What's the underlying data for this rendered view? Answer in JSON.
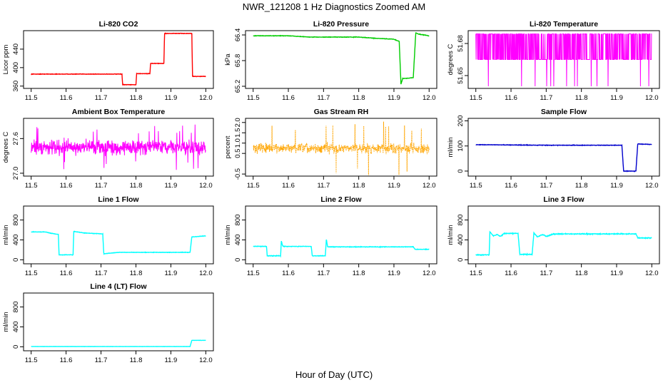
{
  "figure": {
    "title": "NWR_121208  1 Hz Diagnostics Zoomed AM",
    "xlabel": "Hour of Day (UTC)"
  },
  "chart_data": [
    {
      "type": "line",
      "title": "Li-820 CO2",
      "ylabel": "Licor ppm",
      "color": "#ff0000",
      "xlim": [
        11.5,
        12.0
      ],
      "ylim": [
        355,
        480
      ],
      "xticks": [
        "11.5",
        "11.6",
        "11.7",
        "11.8",
        "11.9",
        "12.0"
      ],
      "yticks": [
        "360",
        "400",
        "440"
      ],
      "noise": 0.7,
      "series": [
        {
          "x": [
            11.5,
            11.76,
            11.762,
            11.8,
            11.802,
            11.84,
            11.842,
            11.88,
            11.882,
            11.96,
            11.962,
            12.0
          ],
          "y": [
            386,
            386,
            363,
            363,
            387,
            387,
            409,
            409,
            474,
            474,
            381,
            381
          ]
        }
      ]
    },
    {
      "type": "line",
      "title": "Li-820 Pressure",
      "ylabel": "kPa",
      "color": "#00cc00",
      "xlim": [
        11.5,
        12.0
      ],
      "ylim": [
        65.15,
        66.5
      ],
      "xticks": [
        "11.5",
        "11.6",
        "11.7",
        "11.8",
        "11.9",
        "12.0"
      ],
      "yticks": [
        "65.2",
        "65.8",
        "66.4"
      ],
      "noise": 0.008,
      "series": [
        {
          "x": [
            11.5,
            11.6,
            11.66,
            11.7,
            11.8,
            11.85,
            11.9,
            11.915,
            11.92,
            11.925,
            11.955,
            11.962,
            11.97,
            12.0
          ],
          "y": [
            66.38,
            66.38,
            66.35,
            66.35,
            66.35,
            66.32,
            66.3,
            66.25,
            65.25,
            65.38,
            65.4,
            66.45,
            66.42,
            66.38
          ]
        }
      ]
    },
    {
      "type": "line",
      "title": "Li-820 Temperature",
      "ylabel": "degrees C",
      "color": "#ff00ff",
      "xlim": [
        11.5,
        12.0
      ],
      "ylim": [
        51.638,
        51.692
      ],
      "xticks": [
        "11.5",
        "11.6",
        "11.7",
        "11.8",
        "11.9",
        "12.0"
      ],
      "yticks": [
        "51.65",
        "51.68"
      ],
      "pattern": "binary",
      "levels": [
        51.665,
        51.689
      ],
      "low": 51.64,
      "series": [
        {
          "x": [
            11.5,
            12.0
          ],
          "y": [
            51.665,
            51.689
          ]
        }
      ]
    },
    {
      "type": "line",
      "title": "Ambient Box Temperature",
      "ylabel": "degrees C",
      "color": "#ff00ff",
      "xlim": [
        11.5,
        12.0
      ],
      "ylim": [
        26.95,
        27.95
      ],
      "xticks": [
        "11.5",
        "11.6",
        "11.7",
        "11.8",
        "11.9",
        "12.0"
      ],
      "yticks": [
        "27.0",
        "27.6"
      ],
      "pattern": "band",
      "center": 27.45,
      "spread": 0.18,
      "spikes": 0.4,
      "series": [
        {
          "x": [
            11.5,
            12.0
          ],
          "y": [
            27.45,
            27.45
          ]
        }
      ]
    },
    {
      "type": "scatter",
      "title": "Gas Stream RH",
      "ylabel": "percent",
      "color": "#ffa500",
      "xlim": [
        11.5,
        12.0
      ],
      "ylim": [
        -0.6,
        2.2
      ],
      "xticks": [
        "11.5",
        "11.6",
        "11.7",
        "11.8",
        "11.9",
        "12.0"
      ],
      "yticks": [
        "-0.5",
        "0.5",
        "1.0",
        "1.5",
        "2.0"
      ],
      "pattern": "band",
      "center": 0.75,
      "spread": 0.35,
      "spikes": 1.3,
      "series": [
        {
          "x": [
            11.5,
            12.0
          ],
          "y": [
            0.75,
            0.75
          ]
        }
      ]
    },
    {
      "type": "line",
      "title": "Sample Flow",
      "ylabel": "ml/min",
      "color": "#0000cc",
      "xlim": [
        11.5,
        12.0
      ],
      "ylim": [
        -20,
        210
      ],
      "xticks": [
        "11.5",
        "11.6",
        "11.7",
        "11.8",
        "11.9",
        "12.0"
      ],
      "yticks": [
        "0",
        "100",
        "200"
      ],
      "noise": 1.5,
      "series": [
        {
          "x": [
            11.5,
            11.7,
            11.915,
            11.92,
            11.955,
            11.96,
            12.0
          ],
          "y": [
            105,
            103,
            103,
            0,
            0,
            108,
            106
          ]
        }
      ]
    },
    {
      "type": "line",
      "title": "Line 1 Flow",
      "ylabel": "ml/min",
      "color": "#00ffff",
      "xlim": [
        11.5,
        12.0
      ],
      "ylim": [
        -80,
        1080
      ],
      "xticks": [
        "11.5",
        "11.6",
        "11.7",
        "11.8",
        "11.9",
        "12.0"
      ],
      "yticks": [
        "0",
        "400",
        "800"
      ],
      "noise": 6,
      "series": [
        {
          "x": [
            11.5,
            11.54,
            11.56,
            11.578,
            11.58,
            11.62,
            11.622,
            11.65,
            11.705,
            11.708,
            11.75,
            11.955,
            11.96,
            12.0
          ],
          "y": [
            560,
            560,
            530,
            510,
            100,
            100,
            570,
            540,
            520,
            120,
            150,
            150,
            460,
            480
          ]
        }
      ]
    },
    {
      "type": "line",
      "title": "Line 2 Flow",
      "ylabel": "ml/min",
      "color": "#00ffff",
      "xlim": [
        11.5,
        12.0
      ],
      "ylim": [
        -80,
        1080
      ],
      "xticks": [
        "11.5",
        "11.6",
        "11.7",
        "11.8",
        "11.9",
        "12.0"
      ],
      "yticks": [
        "0",
        "400",
        "800"
      ],
      "noise": 8,
      "series": [
        {
          "x": [
            11.5,
            11.538,
            11.54,
            11.578,
            11.58,
            11.583,
            11.585,
            11.665,
            11.668,
            11.705,
            11.708,
            11.71,
            11.712,
            11.955,
            11.96,
            12.0
          ],
          "y": [
            270,
            270,
            80,
            80,
            380,
            300,
            270,
            270,
            80,
            80,
            420,
            320,
            260,
            260,
            210,
            210
          ]
        }
      ]
    },
    {
      "type": "line",
      "title": "Line 3 Flow",
      "ylabel": "ml/min",
      "color": "#00ffff",
      "xlim": [
        11.5,
        12.0
      ],
      "ylim": [
        -80,
        1080
      ],
      "xticks": [
        "11.5",
        "11.6",
        "11.7",
        "11.8",
        "11.9",
        "12.0"
      ],
      "yticks": [
        "0",
        "400",
        "800"
      ],
      "noise": 12,
      "series": [
        {
          "x": [
            11.5,
            11.538,
            11.54,
            11.55,
            11.56,
            11.57,
            11.58,
            11.62,
            11.625,
            11.66,
            11.665,
            11.675,
            11.69,
            11.7,
            11.72,
            11.955,
            11.96,
            12.0
          ],
          "y": [
            100,
            100,
            560,
            480,
            510,
            470,
            530,
            530,
            110,
            110,
            540,
            460,
            510,
            470,
            520,
            520,
            440,
            440
          ]
        }
      ]
    },
    {
      "type": "line",
      "title": "Line 4 (LT) Flow",
      "ylabel": "ml/min",
      "color": "#00ffff",
      "xlim": [
        11.5,
        12.0
      ],
      "ylim": [
        -80,
        1080
      ],
      "xticks": [
        "11.5",
        "11.6",
        "11.7",
        "11.8",
        "11.9",
        "12.0"
      ],
      "yticks": [
        "0",
        "400",
        "800"
      ],
      "noise": 2,
      "series": [
        {
          "x": [
            11.5,
            11.955,
            11.96,
            12.0
          ],
          "y": [
            5,
            5,
            130,
            130
          ]
        }
      ]
    }
  ]
}
